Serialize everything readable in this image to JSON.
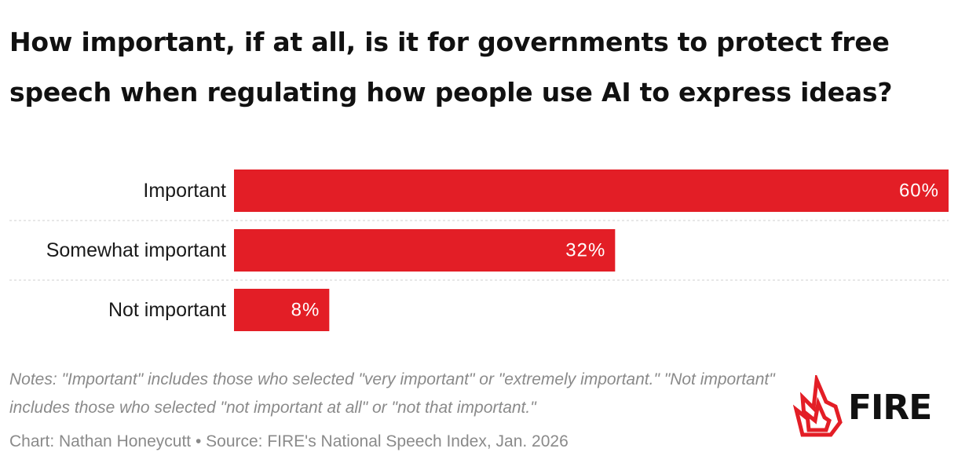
{
  "chart_data": {
    "type": "bar",
    "orientation": "horizontal",
    "title": "How important, if at all, is it for governments to protect free speech when regulating how people use AI to express ideas?",
    "categories": [
      "Important",
      "Somewhat important",
      "Not important"
    ],
    "values": [
      60,
      32,
      8
    ],
    "value_labels": [
      "60%",
      "32%",
      "8%"
    ],
    "xlim": [
      0,
      60
    ],
    "grid": false,
    "bar_color": "#e31e26"
  },
  "footer": {
    "notes": "Notes: \"Important\" includes those who selected \"very important\" or \"extremely important.\" \"Not important\" includes those who selected \"not important at all\" or \"not that important.\"",
    "credit": "Chart: Nathan Honeycutt • Source: FIRE's National Speech Index, Jan. 2026"
  },
  "logo": {
    "text": "FIRE",
    "icon": "flame-icon",
    "color": "#e31e26"
  }
}
